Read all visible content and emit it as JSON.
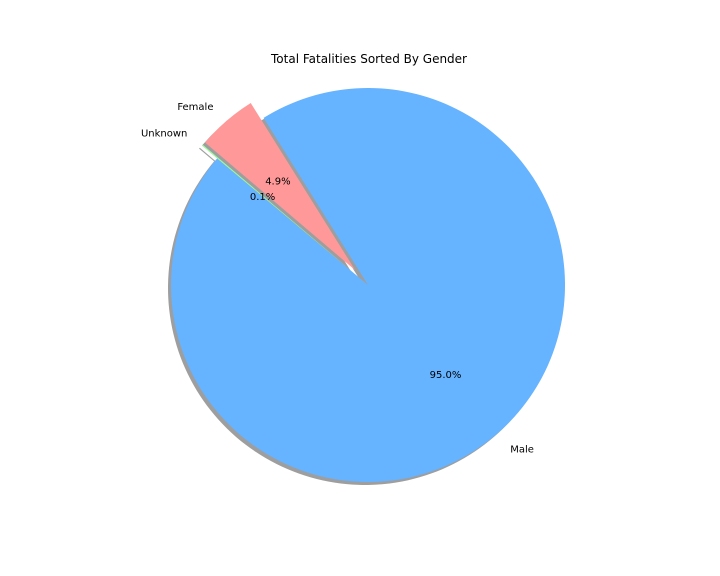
{
  "chart_data": {
    "type": "pie",
    "title": "Total Fatalities Sorted By Gender",
    "slices": [
      {
        "label": "Male",
        "value": 95.0,
        "pct_label": "95.0%",
        "color": "#66b3ff",
        "exploded": false
      },
      {
        "label": "Female",
        "value": 4.9,
        "pct_label": "4.9%",
        "color": "#ff9999",
        "exploded": true
      },
      {
        "label": "Unknown",
        "value": 0.1,
        "pct_label": "0.1%",
        "color": "#99ff99",
        "exploded": true
      }
    ],
    "shadow": true,
    "legend": "none"
  }
}
